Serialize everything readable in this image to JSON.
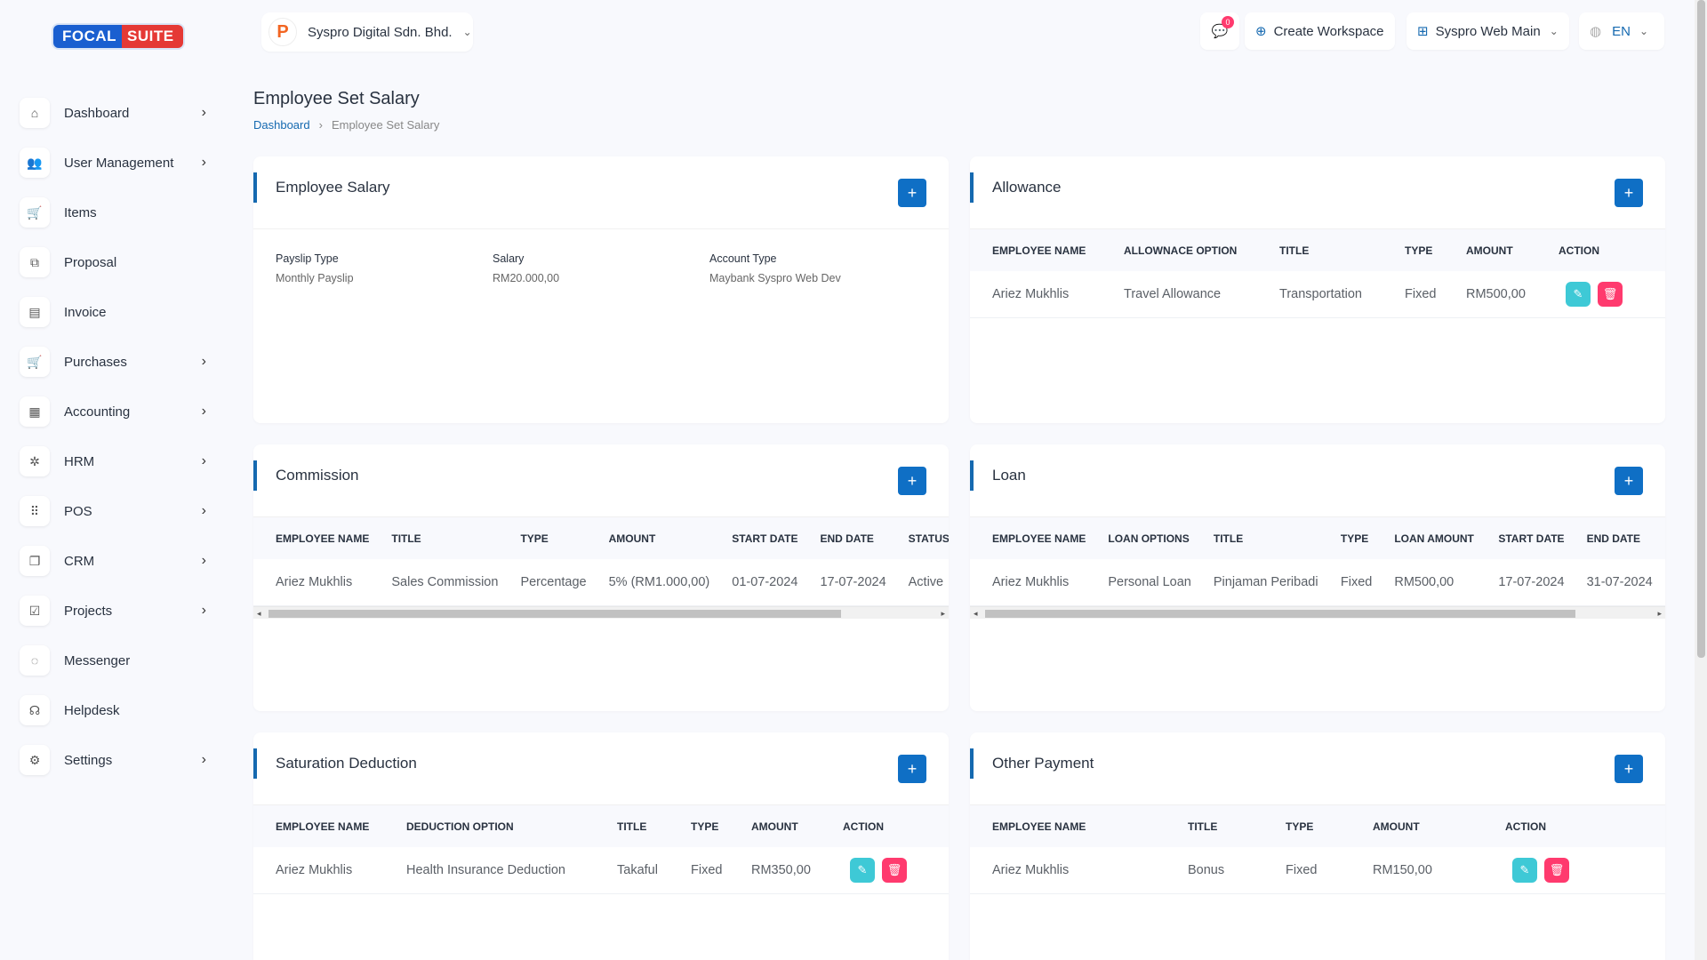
{
  "logo": {
    "part1": "FOCAL",
    "part2": "SUITE"
  },
  "sidebar": {
    "items": [
      {
        "label": "Dashboard",
        "icon": "home-icon",
        "chevron": true
      },
      {
        "label": "User Management",
        "icon": "users-icon",
        "chevron": true
      },
      {
        "label": "Items",
        "icon": "cart-icon",
        "chevron": false
      },
      {
        "label": "Proposal",
        "icon": "proposal-icon",
        "chevron": false
      },
      {
        "label": "Invoice",
        "icon": "file-icon",
        "chevron": false
      },
      {
        "label": "Purchases",
        "icon": "cart-icon",
        "chevron": true
      },
      {
        "label": "Accounting",
        "icon": "grid-icon",
        "chevron": true
      },
      {
        "label": "HRM",
        "icon": "hrm-icon",
        "chevron": true
      },
      {
        "label": "POS",
        "icon": "dots-grid-icon",
        "chevron": true
      },
      {
        "label": "CRM",
        "icon": "layers-icon",
        "chevron": true
      },
      {
        "label": "Projects",
        "icon": "checkbox-icon",
        "chevron": true
      },
      {
        "label": "Messenger",
        "icon": "chat-icon",
        "chevron": false
      },
      {
        "label": "Helpdesk",
        "icon": "headset-icon",
        "chevron": false
      },
      {
        "label": "Settings",
        "icon": "gear-icon",
        "chevron": true
      }
    ]
  },
  "topbar": {
    "company_name": "Syspro Digital Sdn. Bhd.",
    "notification_count": "0",
    "create_workspace": "Create Workspace",
    "workspace": "Syspro Web Main",
    "language": "EN"
  },
  "page": {
    "title": "Employee Set Salary",
    "breadcrumb": {
      "home": "Dashboard",
      "current": "Employee Set Salary"
    }
  },
  "employee_salary": {
    "title": "Employee Salary",
    "payslip_type_label": "Payslip Type",
    "payslip_type": "Monthly Payslip",
    "salary_label": "Salary",
    "salary": "RM20.000,00",
    "account_type_label": "Account Type",
    "account_type": "Maybank Syspro Web Dev"
  },
  "allowance": {
    "title": "Allowance",
    "headers": [
      "EMPLOYEE NAME",
      "ALLOWNACE OPTION",
      "TITLE",
      "TYPE",
      "AMOUNT",
      "ACTION"
    ],
    "rows": [
      [
        "Ariez Mukhlis",
        "Travel Allowance",
        "Transportation",
        "Fixed",
        "RM500,00"
      ]
    ]
  },
  "commission": {
    "title": "Commission",
    "headers": [
      "EMPLOYEE NAME",
      "TITLE",
      "TYPE",
      "AMOUNT",
      "START DATE",
      "END DATE",
      "STATUS"
    ],
    "rows": [
      [
        "Ariez Mukhlis",
        "Sales Commission",
        "Percentage",
        "5% (RM1.000,00)",
        "01-07-2024",
        "17-07-2024",
        "Active"
      ]
    ]
  },
  "loan": {
    "title": "Loan",
    "headers": [
      "EMPLOYEE NAME",
      "LOAN OPTIONS",
      "TITLE",
      "TYPE",
      "LOAN AMOUNT",
      "START DATE",
      "END DATE"
    ],
    "rows": [
      [
        "Ariez Mukhlis",
        "Personal Loan",
        "Pinjaman Peribadi",
        "Fixed",
        "RM500,00",
        "17-07-2024",
        "31-07-2024"
      ]
    ]
  },
  "saturation_deduction": {
    "title": "Saturation Deduction",
    "headers": [
      "EMPLOYEE NAME",
      "DEDUCTION OPTION",
      "TITLE",
      "TYPE",
      "AMOUNT",
      "ACTION"
    ],
    "rows": [
      [
        "Ariez Mukhlis",
        "Health Insurance Deduction",
        "Takaful",
        "Fixed",
        "RM350,00"
      ]
    ]
  },
  "other_payment": {
    "title": "Other Payment",
    "headers": [
      "EMPLOYEE NAME",
      "TITLE",
      "TYPE",
      "AMOUNT",
      "ACTION"
    ],
    "rows": [
      [
        "Ariez Mukhlis",
        "Bonus",
        "Fixed",
        "RM150,00"
      ]
    ]
  },
  "colors": {
    "primary": "#0f6fc5",
    "accent_bar": "#1569b0",
    "edit": "#3ec9d6",
    "delete": "#ff3a6e"
  },
  "icons": {
    "plus": "plus-icon",
    "edit": "pencil-icon",
    "delete": "trash-icon"
  }
}
